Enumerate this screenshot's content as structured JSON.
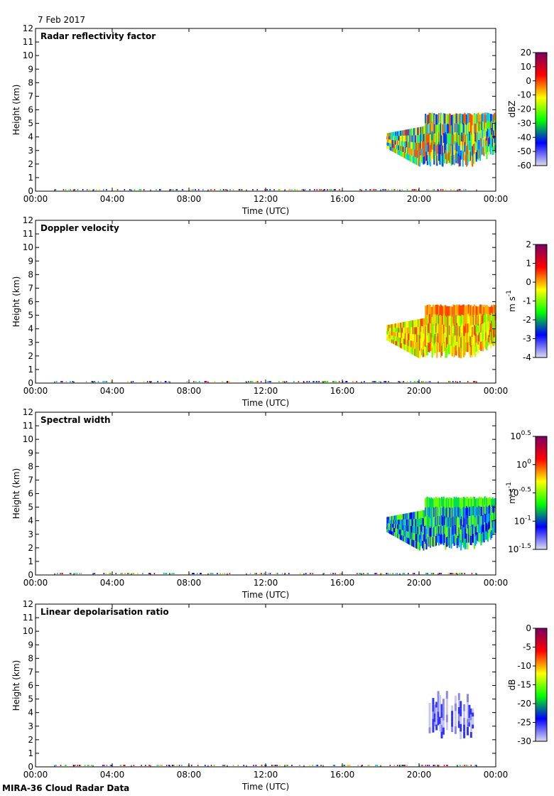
{
  "date_label": "7 Feb 2017",
  "footer_label": "MIRA-36 Cloud Radar Data",
  "chart_data": [
    {
      "type": "heatmap",
      "title": "Radar reflectivity factor",
      "xlabel": "Time (UTC)",
      "ylabel": "Height (km)",
      "xticks": [
        "00:00",
        "04:00",
        "08:00",
        "12:00",
        "16:00",
        "20:00",
        "00:00"
      ],
      "xlim_hours": [
        0,
        24
      ],
      "yticks": [
        0,
        1,
        2,
        3,
        4,
        5,
        6,
        7,
        8,
        9,
        10,
        11,
        12
      ],
      "ylim": [
        0,
        12
      ],
      "colorbar": {
        "unit": "dBZ",
        "ticks": [
          "20",
          "10",
          "0",
          "-10",
          "-20",
          "-30",
          "-40",
          "-50",
          "-60"
        ],
        "range": [
          -60,
          20
        ],
        "colors": [
          "#dcdcf0",
          "#0000ff",
          "#00ff00",
          "#ffff00",
          "#ff0000",
          "#7a0060"
        ]
      },
      "echo": {
        "start_hour": 18.3,
        "end_hour": 24,
        "top_km": 5.8,
        "base_km": 1.8,
        "dominant_colors": [
          "#0033ff",
          "#00c8ff",
          "#33ff33",
          "#ffee00",
          "#ff5500"
        ]
      }
    },
    {
      "type": "heatmap",
      "title": "Doppler velocity",
      "xlabel": "Time (UTC)",
      "ylabel": "Height (km)",
      "xticks": [
        "00:00",
        "04:00",
        "08:00",
        "12:00",
        "16:00",
        "20:00",
        "00:00"
      ],
      "xlim_hours": [
        0,
        24
      ],
      "yticks": [
        0,
        1,
        2,
        3,
        4,
        5,
        6,
        7,
        8,
        9,
        10,
        11,
        12
      ],
      "ylim": [
        0,
        12
      ],
      "colorbar": {
        "unit": "m s-1",
        "ticks": [
          "2",
          "1",
          "0",
          "-1",
          "-2",
          "-3",
          "-4"
        ],
        "range": [
          -4,
          2
        ],
        "colors": [
          "#dcdcf0",
          "#0000ff",
          "#00ff00",
          "#ffff00",
          "#ff0000",
          "#7a0060"
        ]
      },
      "echo": {
        "start_hour": 18.3,
        "end_hour": 24,
        "top_km": 5.8,
        "base_km": 1.8,
        "dominant_colors": [
          "#ffff00",
          "#ccff00",
          "#66ff00",
          "#ffaa00",
          "#ff4400"
        ]
      }
    },
    {
      "type": "heatmap",
      "title": "Spectral width",
      "xlabel": "Time (UTC)",
      "ylabel": "Height (km)",
      "xticks": [
        "00:00",
        "04:00",
        "08:00",
        "12:00",
        "16:00",
        "20:00",
        "00:00"
      ],
      "xlim_hours": [
        0,
        24
      ],
      "yticks": [
        0,
        1,
        2,
        3,
        4,
        5,
        6,
        7,
        8,
        9,
        10,
        11,
        12
      ],
      "ylim": [
        0,
        12
      ],
      "colorbar": {
        "unit": "m s-1",
        "ticks": [
          "10^0.5",
          "10^0",
          "10^-0.5",
          "10^-1",
          "10^-1.5"
        ],
        "scale": "log",
        "colors": [
          "#dcdcf0",
          "#0000ff",
          "#00ff00",
          "#ffff00",
          "#ff0000",
          "#7a0060"
        ]
      },
      "echo": {
        "start_hour": 18.3,
        "end_hour": 24,
        "top_km": 5.8,
        "base_km": 1.8,
        "dominant_colors": [
          "#0000ff",
          "#2244ff",
          "#00aaff",
          "#00dd55",
          "#66ff00"
        ]
      }
    },
    {
      "type": "heatmap",
      "title": "Linear depolarisation ratio",
      "xlabel": "Time (UTC)",
      "ylabel": "Height (km)",
      "xticks": [
        "00:00",
        "04:00",
        "08:00",
        "12:00",
        "16:00",
        "20:00",
        "00:00"
      ],
      "xlim_hours": [
        0,
        24
      ],
      "yticks": [
        0,
        1,
        2,
        3,
        4,
        5,
        6,
        7,
        8,
        9,
        10,
        11,
        12
      ],
      "ylim": [
        0,
        12
      ],
      "colorbar": {
        "unit": "dB",
        "ticks": [
          "0",
          "-5",
          "-10",
          "-15",
          "-20",
          "-25",
          "-30"
        ],
        "range": [
          -30,
          0
        ],
        "colors": [
          "#dcdcf0",
          "#0000ff",
          "#00ff00",
          "#ffff00",
          "#ff0000",
          "#7a0060"
        ]
      },
      "echo": {
        "start_hour": 20.5,
        "end_hour": 22.8,
        "top_km": 5.7,
        "base_km": 2.0,
        "dominant_colors": [
          "#3333ff",
          "#8888ee",
          "#c8c8ee"
        ]
      }
    }
  ]
}
